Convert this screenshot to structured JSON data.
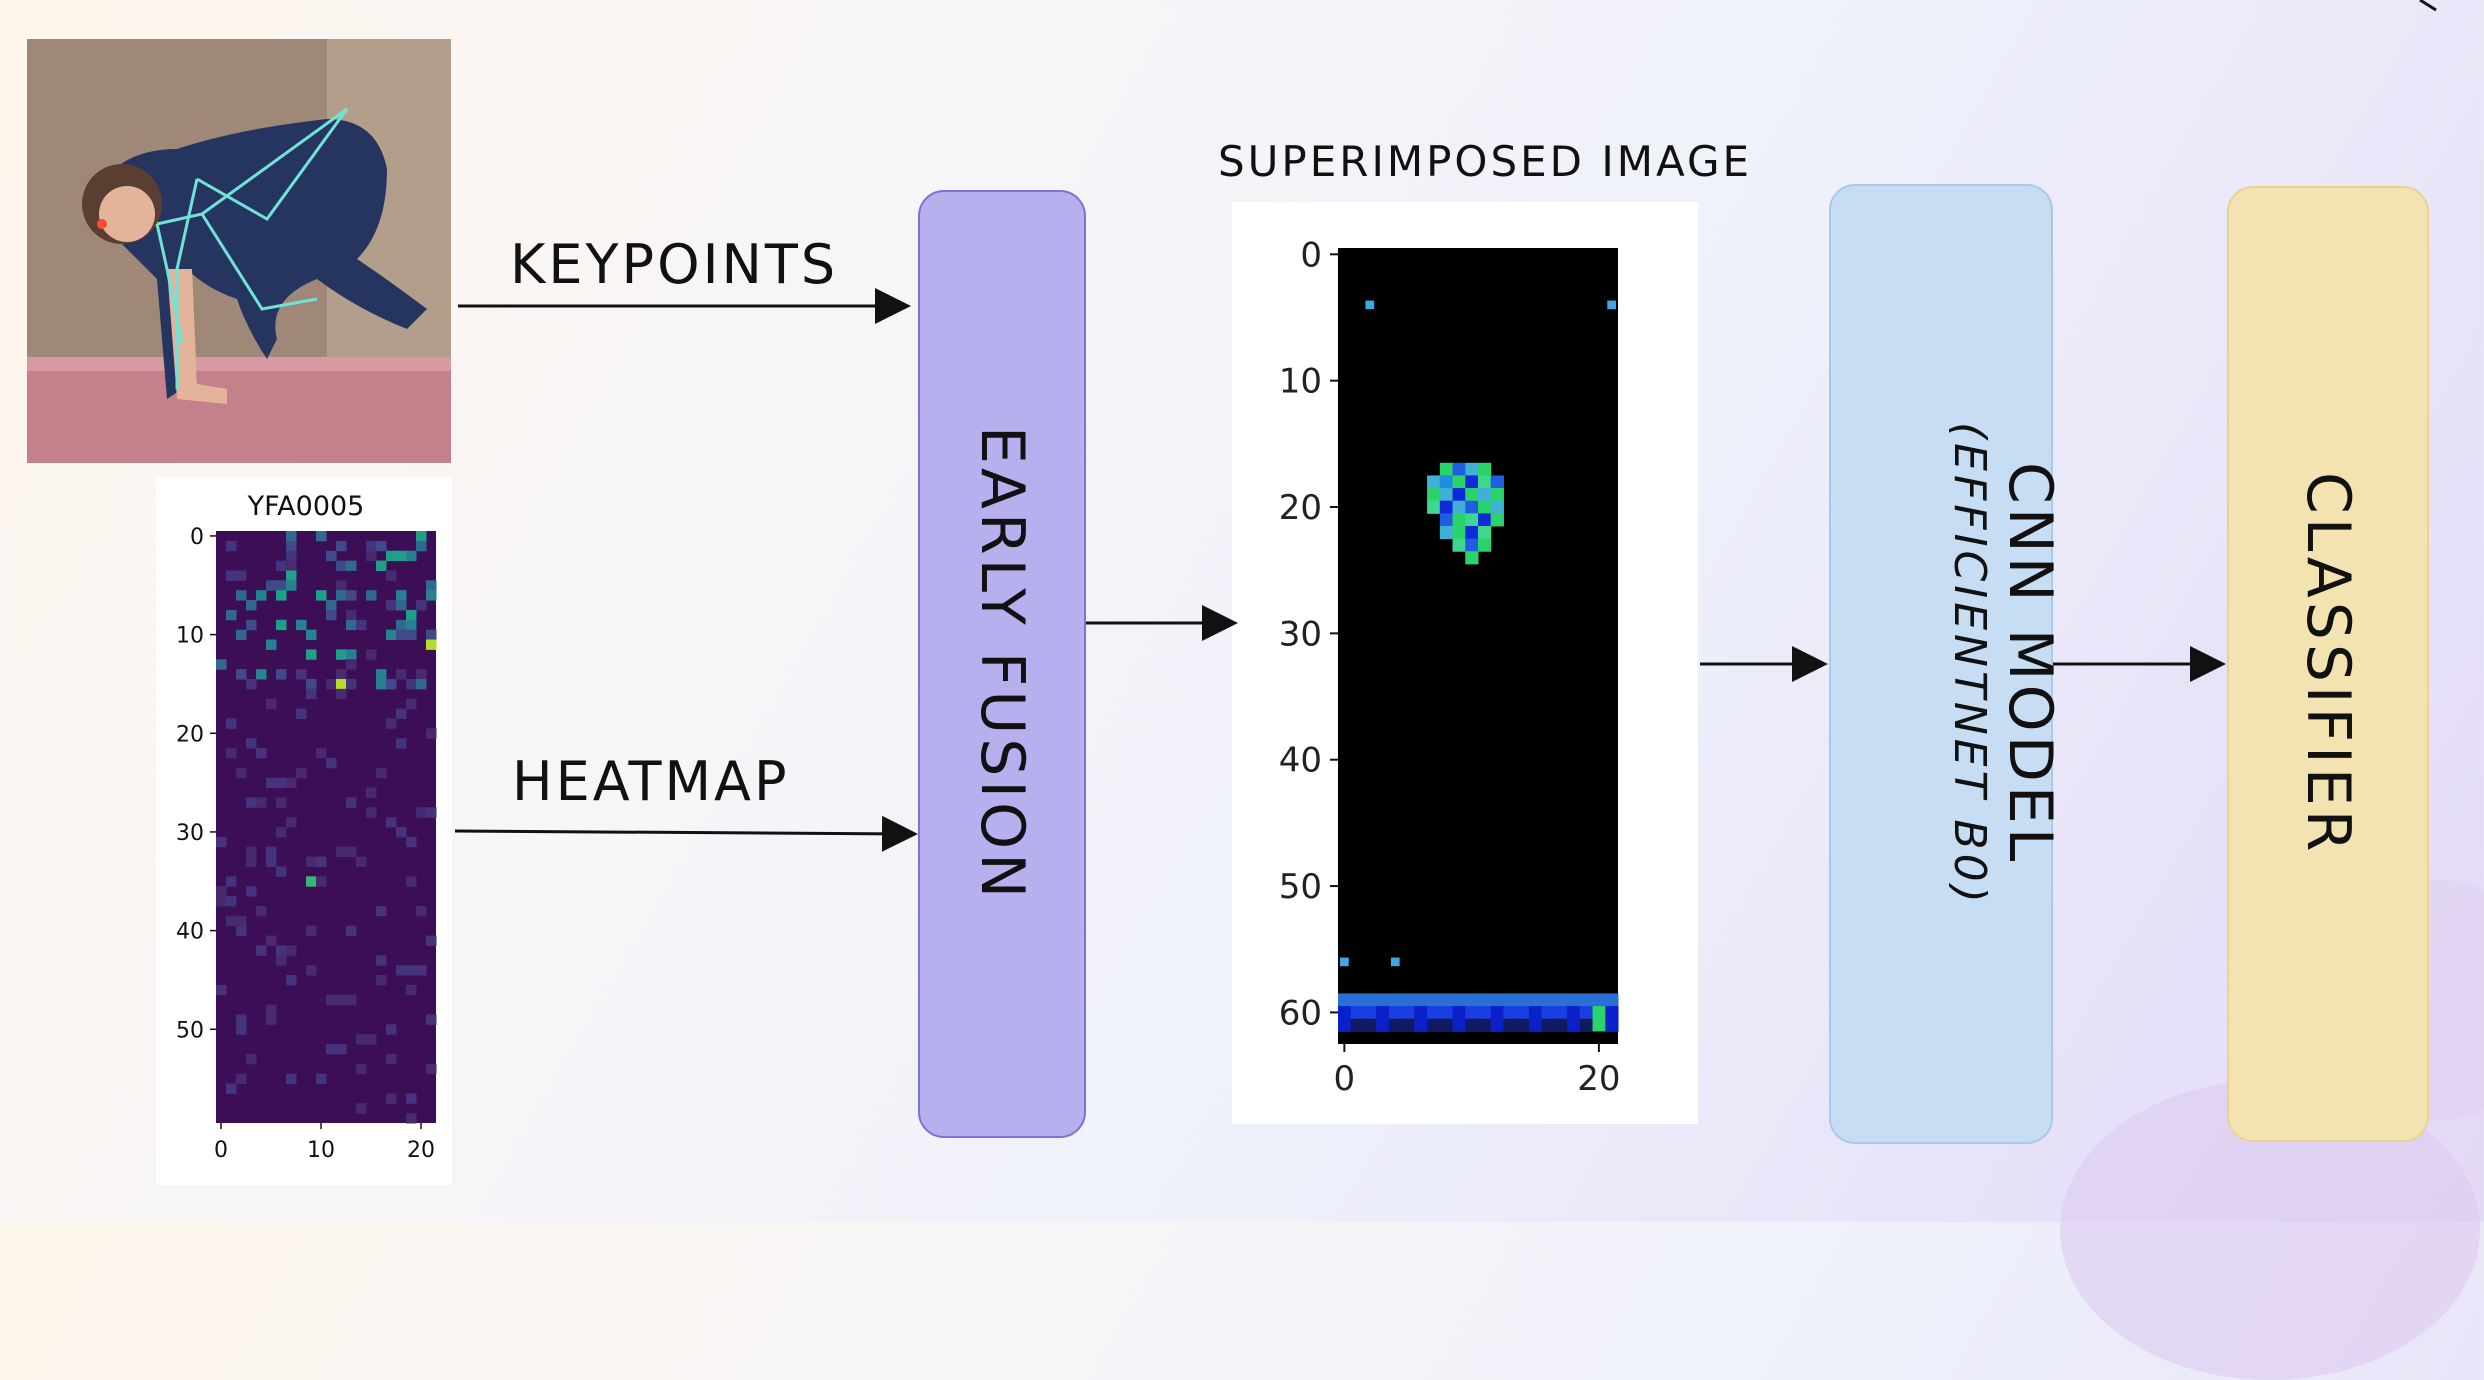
{
  "labels": {
    "keypoints": "KEYPOINTS",
    "heatmap": "HEATMAP",
    "superimposed": "SUPERIMPOSED IMAGE"
  },
  "boxes": {
    "early_fusion": "EARLY FUSION",
    "cnn_model": "CNN MODEL",
    "cnn_sub": "(EFFICIENTNET B0)",
    "classifier": "CLASSIFIER"
  },
  "colors": {
    "fusion": "#b6b0ee",
    "cnn": "#c7ddf3",
    "classifier": "#f3e3b0",
    "heat_bg": "#3c0e55"
  },
  "chart_data": [
    {
      "type": "heatmap",
      "title": "YFA0005",
      "xticks": [
        0,
        10,
        20
      ],
      "yticks": [
        0,
        10,
        20,
        30,
        40,
        50
      ],
      "xlim": [
        0,
        21
      ],
      "ylim": [
        0,
        59
      ],
      "colormap": "viridis"
    },
    {
      "type": "heatmap",
      "title": "",
      "xticks": [
        0,
        20
      ],
      "yticks": [
        0,
        10,
        20,
        30,
        40,
        50,
        60
      ],
      "xlim": [
        0,
        21
      ],
      "ylim": [
        0,
        62
      ]
    }
  ]
}
